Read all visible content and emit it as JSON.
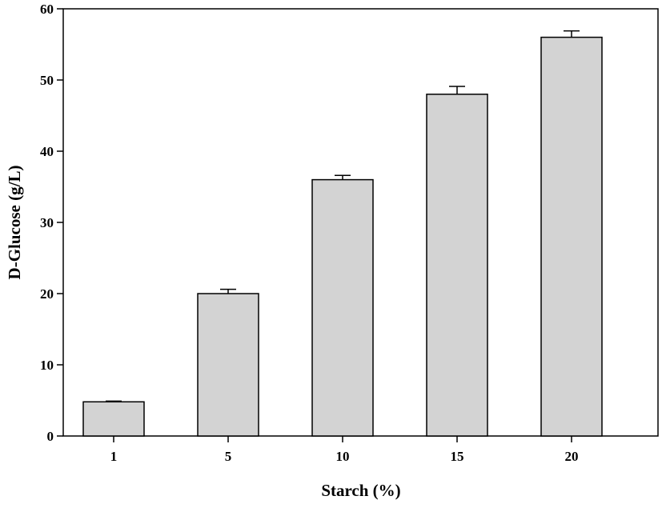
{
  "chart_data": {
    "type": "bar",
    "title": "",
    "xlabel": "Starch (%)",
    "ylabel": "D-Glucose (g/L)",
    "categories": [
      "1",
      "5",
      "10",
      "15",
      "20"
    ],
    "series": [
      {
        "values": [
          4.8,
          20.0,
          36.0,
          48.0,
          56.0
        ],
        "error": [
          0.1,
          0.6,
          0.6,
          1.1,
          0.9
        ]
      }
    ],
    "ylim": [
      0,
      60
    ],
    "yticks": [
      "0",
      "10",
      "20",
      "30",
      "40",
      "50",
      "60"
    ],
    "grid": false,
    "legend": "none",
    "colors": {
      "bar_fill": "#d3d3d3",
      "bar_stroke": "#000000",
      "axis": "#000000"
    }
  }
}
